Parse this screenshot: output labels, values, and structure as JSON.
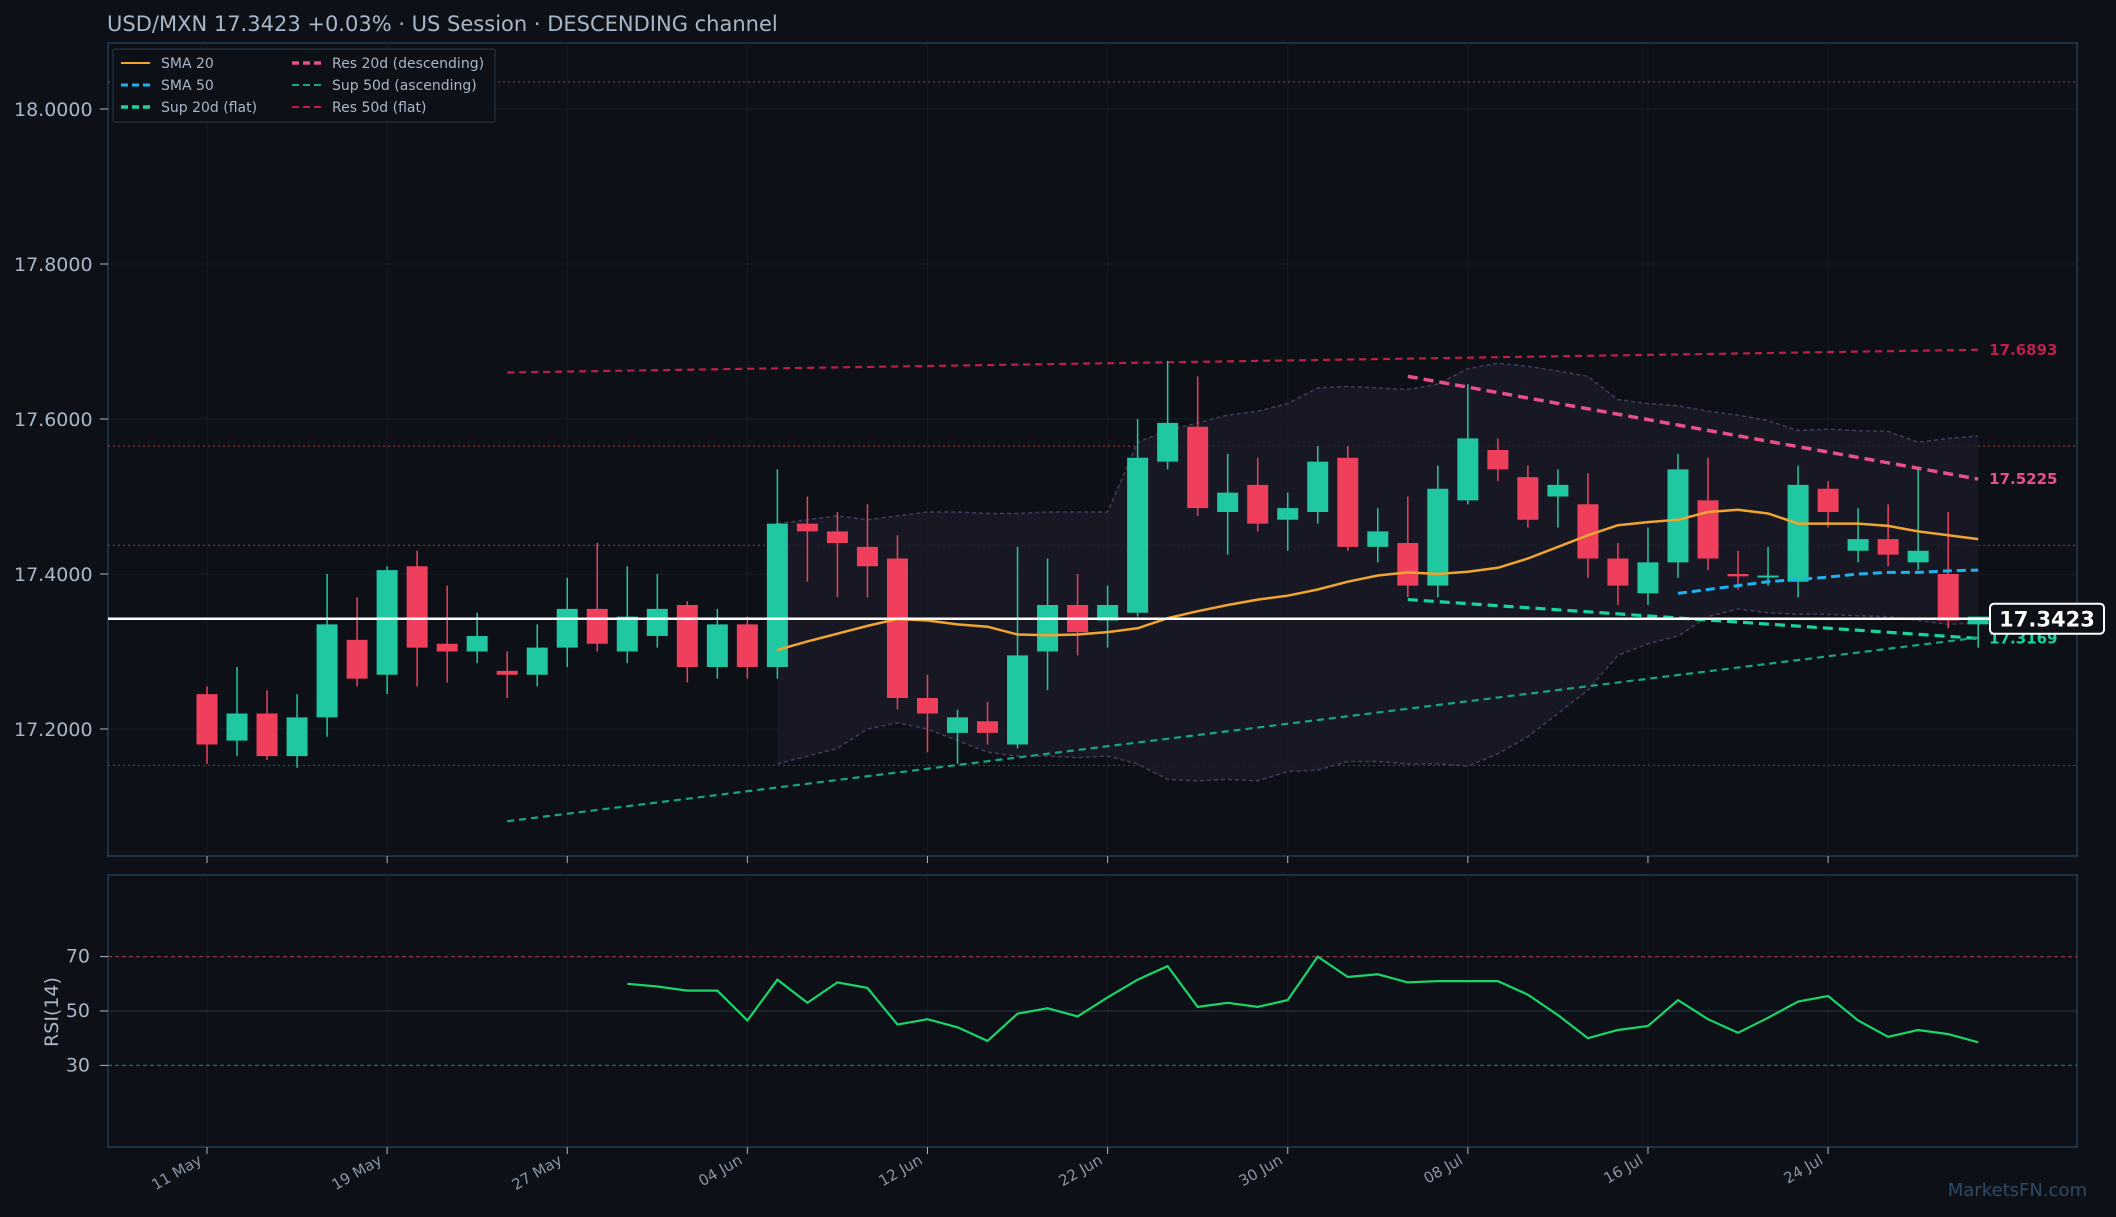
{
  "header": {
    "title": "USD/MXN   17.3423   +0.03%  ·  US Session  ·  DESCENDING channel"
  },
  "watermark": "MarketsFN.com",
  "colors": {
    "background": "#0d1017",
    "bull": "#1fc8a0",
    "bear": "#ef3f5d",
    "sma20": "#f0a530",
    "sma50": "#1ab4f0",
    "res_desc": "#e8508a",
    "sup_asc": "#17a77c",
    "res_flat": "#c01e4a",
    "sup_flat": "#19d3a2",
    "rsi": "#19d56a"
  },
  "legend": {
    "items": [
      {
        "label": "SMA 20",
        "color": "#f0a530",
        "dash": "solid"
      },
      {
        "label": "SMA 50",
        "color": "#1ab4f0",
        "dash": "dashed"
      },
      {
        "label": "Sup 20d (flat)",
        "color": "#19d3a2",
        "dash": "dashed"
      },
      {
        "label": "Res 20d (descending)",
        "color": "#e8508a",
        "dash": "dashed"
      },
      {
        "label": "Sup 50d (ascending)",
        "color": "#17a77c",
        "dash": "dashed"
      },
      {
        "label": "Res 50d (flat)",
        "color": "#c01e4a",
        "dash": "dashed"
      }
    ]
  },
  "chart_data": {
    "type": "candlestick",
    "pair": "USD/MXN",
    "ylim": [
      17.06,
      18.08
    ],
    "yticks": [
      "17.2000",
      "17.4000",
      "17.6000",
      "17.8000",
      "18.0000"
    ],
    "ytick_values": [
      17.2,
      17.4,
      17.6,
      17.8,
      18.0
    ],
    "xticks": [
      "11 May",
      "19 May",
      "27 May",
      "04 Jun",
      "12 Jun",
      "22 Jun",
      "30 Jun",
      "08 Jul",
      "16 Jul",
      "24 Jul"
    ],
    "xtick_index": [
      0,
      6,
      12,
      18,
      24,
      30,
      36,
      42,
      48,
      54
    ],
    "candles": [
      [
        17.245,
        17.255,
        17.155,
        17.18
      ],
      [
        17.185,
        17.28,
        17.165,
        17.22
      ],
      [
        17.22,
        17.25,
        17.16,
        17.165
      ],
      [
        17.165,
        17.245,
        17.15,
        17.215
      ],
      [
        17.215,
        17.4,
        17.19,
        17.335
      ],
      [
        17.315,
        17.37,
        17.255,
        17.265
      ],
      [
        17.27,
        17.41,
        17.245,
        17.405
      ],
      [
        17.41,
        17.43,
        17.255,
        17.305
      ],
      [
        17.31,
        17.385,
        17.26,
        17.3
      ],
      [
        17.3,
        17.35,
        17.285,
        17.32
      ],
      [
        17.275,
        17.3,
        17.24,
        17.27
      ],
      [
        17.27,
        17.335,
        17.255,
        17.305
      ],
      [
        17.305,
        17.395,
        17.28,
        17.355
      ],
      [
        17.355,
        17.44,
        17.3,
        17.31
      ],
      [
        17.3,
        17.41,
        17.285,
        17.345
      ],
      [
        17.32,
        17.4,
        17.305,
        17.355
      ],
      [
        17.36,
        17.365,
        17.26,
        17.28
      ],
      [
        17.28,
        17.355,
        17.265,
        17.335
      ],
      [
        17.335,
        17.345,
        17.265,
        17.28
      ],
      [
        17.28,
        17.535,
        17.265,
        17.465
      ],
      [
        17.465,
        17.5,
        17.39,
        17.455
      ],
      [
        17.455,
        17.48,
        17.37,
        17.44
      ],
      [
        17.435,
        17.49,
        17.37,
        17.41
      ],
      [
        17.42,
        17.45,
        17.225,
        17.24
      ],
      [
        17.24,
        17.27,
        17.17,
        17.22
      ],
      [
        17.195,
        17.225,
        17.155,
        17.215
      ],
      [
        17.21,
        17.235,
        17.18,
        17.195
      ],
      [
        17.18,
        17.435,
        17.175,
        17.295
      ],
      [
        17.3,
        17.42,
        17.25,
        17.36
      ],
      [
        17.36,
        17.4,
        17.295,
        17.325
      ],
      [
        17.34,
        17.385,
        17.305,
        17.36
      ],
      [
        17.35,
        17.6,
        17.345,
        17.55
      ],
      [
        17.545,
        17.675,
        17.535,
        17.595
      ],
      [
        17.59,
        17.655,
        17.475,
        17.485
      ],
      [
        17.48,
        17.555,
        17.425,
        17.505
      ],
      [
        17.515,
        17.55,
        17.455,
        17.465
      ],
      [
        17.47,
        17.505,
        17.43,
        17.485
      ],
      [
        17.48,
        17.565,
        17.465,
        17.545
      ],
      [
        17.55,
        17.565,
        17.43,
        17.435
      ],
      [
        17.435,
        17.485,
        17.415,
        17.455
      ],
      [
        17.44,
        17.5,
        17.37,
        17.385
      ],
      [
        17.385,
        17.54,
        17.37,
        17.51
      ],
      [
        17.495,
        17.645,
        17.49,
        17.575
      ],
      [
        17.56,
        17.575,
        17.52,
        17.535
      ],
      [
        17.525,
        17.54,
        17.46,
        17.47
      ],
      [
        17.5,
        17.535,
        17.46,
        17.515
      ],
      [
        17.49,
        17.53,
        17.395,
        17.42
      ],
      [
        17.42,
        17.44,
        17.36,
        17.385
      ],
      [
        17.375,
        17.46,
        17.36,
        17.415
      ],
      [
        17.415,
        17.555,
        17.395,
        17.535
      ],
      [
        17.495,
        17.55,
        17.405,
        17.42
      ],
      [
        17.4,
        17.43,
        17.38,
        17.397
      ],
      [
        17.397,
        17.435,
        17.385,
        17.398
      ],
      [
        17.39,
        17.54,
        17.37,
        17.515
      ],
      [
        17.51,
        17.52,
        17.46,
        17.48
      ],
      [
        17.43,
        17.485,
        17.415,
        17.445
      ],
      [
        17.445,
        17.49,
        17.41,
        17.425
      ],
      [
        17.415,
        17.535,
        17.405,
        17.43
      ],
      [
        17.4,
        17.48,
        17.33,
        17.34
      ],
      [
        17.335,
        17.345,
        17.305,
        17.345
      ]
    ],
    "bollinger_upper": [
      [
        19,
        17.465
      ],
      [
        20,
        17.47
      ],
      [
        21,
        17.475
      ],
      [
        22,
        17.47
      ],
      [
        23,
        17.475
      ],
      [
        24,
        17.48
      ],
      [
        25,
        17.48
      ],
      [
        26,
        17.478
      ],
      [
        27,
        17.478
      ],
      [
        28,
        17.48
      ],
      [
        29,
        17.48
      ],
      [
        30,
        17.48
      ],
      [
        31,
        17.57
      ],
      [
        32,
        17.585
      ],
      [
        33,
        17.595
      ],
      [
        34,
        17.605
      ],
      [
        35,
        17.61
      ],
      [
        36,
        17.62
      ],
      [
        37,
        17.64
      ],
      [
        38,
        17.642
      ],
      [
        39,
        17.64
      ],
      [
        40,
        17.638
      ],
      [
        41,
        17.645
      ],
      [
        42,
        17.665
      ],
      [
        43,
        17.672
      ],
      [
        44,
        17.668
      ],
      [
        45,
        17.662
      ],
      [
        46,
        17.655
      ],
      [
        47,
        17.625
      ],
      [
        48,
        17.62
      ],
      [
        49,
        17.617
      ],
      [
        50,
        17.61
      ],
      [
        51,
        17.605
      ],
      [
        52,
        17.598
      ],
      [
        53,
        17.585
      ],
      [
        54,
        17.587
      ],
      [
        55,
        17.585
      ],
      [
        56,
        17.584
      ],
      [
        57,
        17.57
      ],
      [
        58,
        17.575
      ],
      [
        59,
        17.578
      ]
    ],
    "bollinger_lower": [
      [
        19,
        17.155
      ],
      [
        20,
        17.165
      ],
      [
        21,
        17.175
      ],
      [
        22,
        17.2
      ],
      [
        23,
        17.208
      ],
      [
        24,
        17.2
      ],
      [
        25,
        17.185
      ],
      [
        26,
        17.17
      ],
      [
        27,
        17.165
      ],
      [
        28,
        17.165
      ],
      [
        29,
        17.163
      ],
      [
        30,
        17.165
      ],
      [
        31,
        17.155
      ],
      [
        32,
        17.135
      ],
      [
        33,
        17.133
      ],
      [
        34,
        17.135
      ],
      [
        35,
        17.133
      ],
      [
        36,
        17.145
      ],
      [
        37,
        17.147
      ],
      [
        38,
        17.158
      ],
      [
        39,
        17.158
      ],
      [
        40,
        17.155
      ],
      [
        41,
        17.155
      ],
      [
        42,
        17.152
      ],
      [
        43,
        17.168
      ],
      [
        44,
        17.19
      ],
      [
        45,
        17.22
      ],
      [
        46,
        17.25
      ],
      [
        47,
        17.295
      ],
      [
        48,
        17.31
      ],
      [
        49,
        17.32
      ],
      [
        50,
        17.345
      ],
      [
        51,
        17.355
      ],
      [
        52,
        17.35
      ],
      [
        53,
        17.348
      ],
      [
        54,
        17.348
      ],
      [
        55,
        17.346
      ],
      [
        56,
        17.345
      ],
      [
        57,
        17.34
      ],
      [
        58,
        17.335
      ],
      [
        59,
        17.337
      ]
    ],
    "sma20": [
      [
        19,
        17.302
      ],
      [
        20,
        17.313
      ],
      [
        21,
        17.323
      ],
      [
        22,
        17.333
      ],
      [
        23,
        17.342
      ],
      [
        24,
        17.34
      ],
      [
        25,
        17.335
      ],
      [
        26,
        17.332
      ],
      [
        27,
        17.322
      ],
      [
        28,
        17.321
      ],
      [
        29,
        17.322
      ],
      [
        30,
        17.325
      ],
      [
        31,
        17.33
      ],
      [
        32,
        17.343
      ],
      [
        33,
        17.352
      ],
      [
        34,
        17.36
      ],
      [
        35,
        17.367
      ],
      [
        36,
        17.372
      ],
      [
        37,
        17.38
      ],
      [
        38,
        17.39
      ],
      [
        39,
        17.398
      ],
      [
        40,
        17.402
      ],
      [
        41,
        17.4
      ],
      [
        42,
        17.403
      ],
      [
        43,
        17.408
      ],
      [
        44,
        17.42
      ],
      [
        45,
        17.435
      ],
      [
        46,
        17.45
      ],
      [
        47,
        17.463
      ],
      [
        48,
        17.467
      ],
      [
        49,
        17.47
      ],
      [
        50,
        17.48
      ],
      [
        51,
        17.483
      ],
      [
        52,
        17.478
      ],
      [
        53,
        17.465
      ],
      [
        54,
        17.465
      ],
      [
        55,
        17.465
      ],
      [
        56,
        17.462
      ],
      [
        57,
        17.455
      ],
      [
        58,
        17.45
      ],
      [
        59,
        17.445
      ]
    ],
    "sma50": [
      [
        49,
        17.375
      ],
      [
        50,
        17.38
      ],
      [
        51,
        17.385
      ],
      [
        52,
        17.39
      ],
      [
        53,
        17.393
      ],
      [
        54,
        17.396
      ],
      [
        55,
        17.4
      ],
      [
        56,
        17.402
      ],
      [
        57,
        17.402
      ],
      [
        58,
        17.404
      ],
      [
        59,
        17.405
      ]
    ],
    "lines": [
      {
        "name": "Res 50d (flat)",
        "x0": 10,
        "y0": 17.66,
        "x1": 59,
        "y1": 17.6893,
        "label": "17.6893"
      },
      {
        "name": "Res 20d (descending)",
        "x0": 40,
        "y0": 17.655,
        "x1": 59,
        "y1": 17.5225,
        "label": "17.5225"
      },
      {
        "name": "Sup 20d (flat)",
        "x0": 40,
        "y0": 17.367,
        "x1": 59,
        "y1": 17.3169,
        "label": "17.3169"
      },
      {
        "name": "Sup 50d (ascending)",
        "x0": 10,
        "y0": 17.081,
        "x1": 59,
        "y1": 17.318,
        "label": ""
      }
    ],
    "hlines": [
      {
        "value": 18.035,
        "color": "#7a3538"
      },
      {
        "value": 17.565,
        "color": "#7a3538"
      },
      {
        "value": 17.437,
        "color": "#7a3538"
      },
      {
        "value": 17.153,
        "color": "#1f5a3a"
      }
    ],
    "last_price": 17.3423,
    "last_price_label": "17.3423",
    "rsi": {
      "label": "RSI(14)",
      "ylim": [
        0,
        100
      ],
      "levels": [
        70,
        50,
        30
      ],
      "level_labels": [
        "70",
        "50",
        "30"
      ],
      "points": [
        [
          14,
          60
        ],
        [
          15,
          59
        ],
        [
          16,
          57.5
        ],
        [
          17,
          57.5
        ],
        [
          18,
          46.5
        ],
        [
          19,
          61.5
        ],
        [
          20,
          53
        ],
        [
          21,
          60.5
        ],
        [
          22,
          58.5
        ],
        [
          23,
          45
        ],
        [
          24,
          47
        ],
        [
          25,
          44
        ],
        [
          26,
          39
        ],
        [
          27,
          49
        ],
        [
          28,
          51
        ],
        [
          29,
          48
        ],
        [
          30,
          55
        ],
        [
          31,
          61.5
        ],
        [
          32,
          66.5
        ],
        [
          33,
          51.5
        ],
        [
          34,
          53
        ],
        [
          35,
          51.5
        ],
        [
          36,
          54
        ],
        [
          37,
          70
        ],
        [
          38,
          62.5
        ],
        [
          39,
          63.5
        ],
        [
          40,
          60.5
        ],
        [
          41,
          61
        ],
        [
          42,
          61
        ],
        [
          43,
          61
        ],
        [
          44,
          56
        ],
        [
          45,
          48.5
        ],
        [
          46,
          40
        ],
        [
          47,
          43
        ],
        [
          48,
          44.5
        ],
        [
          49,
          54
        ],
        [
          50,
          47
        ],
        [
          51,
          42
        ],
        [
          52,
          47.5
        ],
        [
          53,
          53.5
        ],
        [
          54,
          55.5
        ],
        [
          55,
          46.5
        ],
        [
          56,
          40.5
        ],
        [
          57,
          43
        ],
        [
          58,
          41.5
        ],
        [
          59,
          38.5
        ]
      ]
    }
  }
}
